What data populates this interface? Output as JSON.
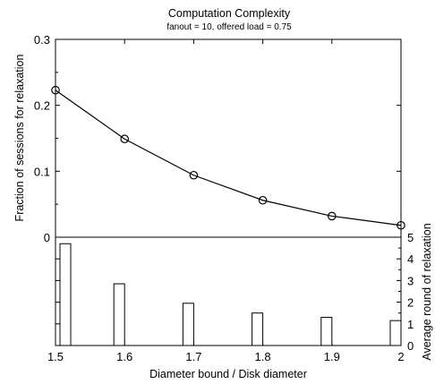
{
  "chart_data": [
    {
      "type": "line",
      "title": "Computation Complexity",
      "subtitle": "fanout = 10, offered load = 0.75",
      "ylabel": "Fraction of sessions for relaxation",
      "xlabel": "",
      "xlim": [
        1.5,
        2.0
      ],
      "ylim": [
        0,
        0.3
      ],
      "yticks": [
        0,
        0.1,
        0.2,
        0.3
      ],
      "yticklabels": [
        "0",
        "0.1",
        "0.2",
        "0.3"
      ],
      "marker": "circle",
      "x": [
        1.5,
        1.6,
        1.7,
        1.8,
        1.9,
        2.0
      ],
      "values": [
        0.223,
        0.149,
        0.094,
        0.056,
        0.032,
        0.018
      ]
    },
    {
      "type": "bar",
      "xlabel": "Diameter bound / Disk diameter",
      "ylabel": "Average round of relaxation",
      "y_axis_side": "right",
      "xlim": [
        1.5,
        2.0
      ],
      "ylim": [
        0,
        5
      ],
      "xticks": [
        1.5,
        1.6,
        1.7,
        1.8,
        1.9,
        2.0
      ],
      "xticklabels": [
        "1.5",
        "1.6",
        "1.7",
        "1.8",
        "1.9",
        "2"
      ],
      "yticks": [
        0,
        1,
        2,
        3,
        4,
        5
      ],
      "yticklabels": [
        "0",
        "1",
        "2",
        "3",
        "4",
        "5"
      ],
      "x": [
        1.5,
        1.6,
        1.7,
        1.8,
        1.9,
        2.0
      ],
      "values": [
        4.7,
        2.85,
        1.95,
        1.5,
        1.3,
        1.15
      ]
    }
  ]
}
